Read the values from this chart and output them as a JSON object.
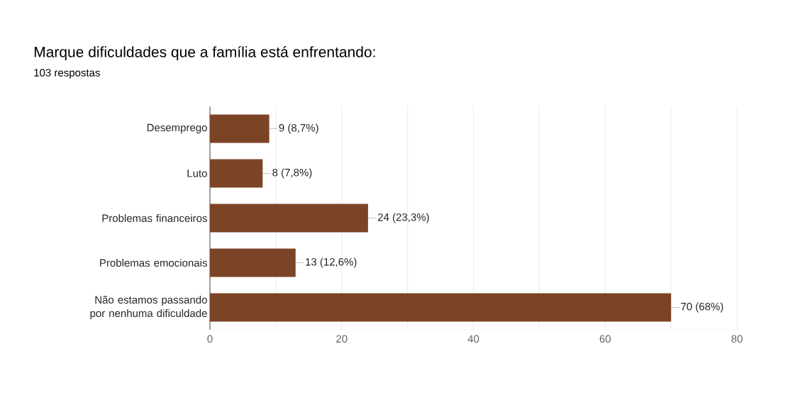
{
  "chart_data": {
    "type": "bar",
    "orientation": "horizontal",
    "title": "Marque dificuldades que a família está enfrentando:",
    "subtitle": "103 respostas",
    "categories": [
      "Desemprego",
      "Luto",
      "Problemas financeiros",
      "Problemas emocionais",
      "Não estamos passando por nenhuma dificuldade"
    ],
    "values": [
      9,
      8,
      24,
      13,
      70
    ],
    "value_labels": [
      "9 (8,7%)",
      "8 (7,8%)",
      "24 (23,3%)",
      "13 (12,6%)",
      "70 (68%)"
    ],
    "color": "#7b4426",
    "xlim": [
      0,
      80
    ],
    "xticks": [
      0,
      {
        "value": 10,
        "label": null
      },
      20,
      {
        "value": 30,
        "label": null
      },
      40,
      {
        "value": 50,
        "label": null
      },
      60,
      {
        "value": 70,
        "label": null
      },
      80
    ],
    "grid": "x"
  }
}
